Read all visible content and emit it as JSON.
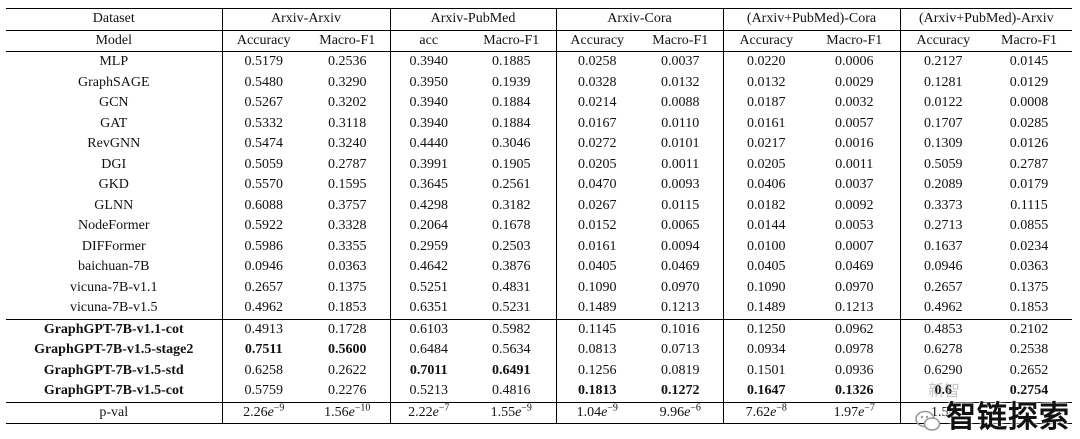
{
  "header": {
    "dataset_label": "Dataset",
    "model_label": "Model",
    "groups": [
      {
        "name": "Arxiv-Arxiv",
        "metrics": [
          "Accuracy",
          "Macro-F1"
        ]
      },
      {
        "name": "Arxiv-PubMed",
        "metrics": [
          "acc",
          "Macro-F1"
        ]
      },
      {
        "name": "Arxiv-Cora",
        "metrics": [
          "Accuracy",
          "Macro-F1"
        ]
      },
      {
        "name": "(Arxiv+PubMed)-Cora",
        "metrics": [
          "Accuracy",
          "Macro-F1"
        ]
      },
      {
        "name": "(Arxiv+PubMed)-Arxiv",
        "metrics": [
          "Accuracy",
          "Macro-F1"
        ]
      }
    ]
  },
  "baseline_rows": [
    {
      "model": "MLP",
      "values": [
        "0.5179",
        "0.2536",
        "0.3940",
        "0.1885",
        "0.0258",
        "0.0037",
        "0.0220",
        "0.0006",
        "0.2127",
        "0.0145"
      ]
    },
    {
      "model": "GraphSAGE",
      "values": [
        "0.5480",
        "0.3290",
        "0.3950",
        "0.1939",
        "0.0328",
        "0.0132",
        "0.0132",
        "0.0029",
        "0.1281",
        "0.0129"
      ]
    },
    {
      "model": "GCN",
      "values": [
        "0.5267",
        "0.3202",
        "0.3940",
        "0.1884",
        "0.0214",
        "0.0088",
        "0.0187",
        "0.0032",
        "0.0122",
        "0.0008"
      ]
    },
    {
      "model": "GAT",
      "values": [
        "0.5332",
        "0.3118",
        "0.3940",
        "0.1884",
        "0.0167",
        "0.0110",
        "0.0161",
        "0.0057",
        "0.1707",
        "0.0285"
      ]
    },
    {
      "model": "RevGNN",
      "values": [
        "0.5474",
        "0.3240",
        "0.4440",
        "0.3046",
        "0.0272",
        "0.0101",
        "0.0217",
        "0.0016",
        "0.1309",
        "0.0126"
      ]
    },
    {
      "model": "DGI",
      "values": [
        "0.5059",
        "0.2787",
        "0.3991",
        "0.1905",
        "0.0205",
        "0.0011",
        "0.0205",
        "0.0011",
        "0.5059",
        "0.2787"
      ]
    },
    {
      "model": "GKD",
      "values": [
        "0.5570",
        "0.1595",
        "0.3645",
        "0.2561",
        "0.0470",
        "0.0093",
        "0.0406",
        "0.0037",
        "0.2089",
        "0.0179"
      ]
    },
    {
      "model": "GLNN",
      "values": [
        "0.6088",
        "0.3757",
        "0.4298",
        "0.3182",
        "0.0267",
        "0.0115",
        "0.0182",
        "0.0092",
        "0.3373",
        "0.1115"
      ]
    },
    {
      "model": "NodeFormer",
      "values": [
        "0.5922",
        "0.3328",
        "0.2064",
        "0.1678",
        "0.0152",
        "0.0065",
        "0.0144",
        "0.0053",
        "0.2713",
        "0.0855"
      ]
    },
    {
      "model": "DIFFormer",
      "values": [
        "0.5986",
        "0.3355",
        "0.2959",
        "0.2503",
        "0.0161",
        "0.0094",
        "0.0100",
        "0.0007",
        "0.1637",
        "0.0234"
      ]
    },
    {
      "model": "baichuan-7B",
      "values": [
        "0.0946",
        "0.0363",
        "0.4642",
        "0.3876",
        "0.0405",
        "0.0469",
        "0.0405",
        "0.0469",
        "0.0946",
        "0.0363"
      ]
    },
    {
      "model": "vicuna-7B-v1.1",
      "values": [
        "0.2657",
        "0.1375",
        "0.5251",
        "0.4831",
        "0.1090",
        "0.0970",
        "0.1090",
        "0.0970",
        "0.2657",
        "0.1375"
      ]
    },
    {
      "model": "vicuna-7B-v1.5",
      "values": [
        "0.4962",
        "0.1853",
        "0.6351",
        "0.5231",
        "0.1489",
        "0.1213",
        "0.1489",
        "0.1213",
        "0.4962",
        "0.1853"
      ]
    }
  ],
  "graphgpt_rows": [
    {
      "model": "GraphGPT-7B-v1.1-cot",
      "values": [
        "0.4913",
        "0.1728",
        "0.6103",
        "0.5982",
        "0.1145",
        "0.1016",
        "0.1250",
        "0.0962",
        "0.4853",
        "0.2102"
      ],
      "bold": []
    },
    {
      "model": "GraphGPT-7B-v1.5-stage2",
      "values": [
        "0.7511",
        "0.5600",
        "0.6484",
        "0.5634",
        "0.0813",
        "0.0713",
        "0.0934",
        "0.0978",
        "0.6278",
        "0.2538"
      ],
      "bold": [
        0,
        1
      ]
    },
    {
      "model": "GraphGPT-7B-v1.5-std",
      "values": [
        "0.6258",
        "0.2622",
        "0.7011",
        "0.6491",
        "0.1256",
        "0.0819",
        "0.1501",
        "0.0936",
        "0.6290",
        "0.2652"
      ],
      "bold": [
        2,
        3
      ]
    },
    {
      "model": "GraphGPT-7B-v1.5-cot",
      "values": [
        "0.5759",
        "0.2276",
        "0.5213",
        "0.4816",
        "0.1813",
        "0.1272",
        "0.1647",
        "0.1326",
        "0.6",
        "0.2754"
      ],
      "bold": [
        4,
        5,
        6,
        7,
        8,
        9
      ]
    }
  ],
  "pval_row": {
    "label": "p-val",
    "values": [
      {
        "base": "2.26",
        "exp": "−9"
      },
      {
        "base": "1.56",
        "exp": "−10"
      },
      {
        "base": "2.22",
        "exp": "−7"
      },
      {
        "base": "1.55",
        "exp": "−9"
      },
      {
        "base": "1.04",
        "exp": "−9"
      },
      {
        "base": "9.96",
        "exp": "−6"
      },
      {
        "base": "7.62",
        "exp": "−8"
      },
      {
        "base": "1.97",
        "exp": "−7"
      },
      {
        "base": "1.56",
        "exp": ""
      },
      {
        "base": "",
        "exp": ""
      }
    ]
  },
  "watermark": {
    "text": "智链探索",
    "faint_text": "新智"
  }
}
